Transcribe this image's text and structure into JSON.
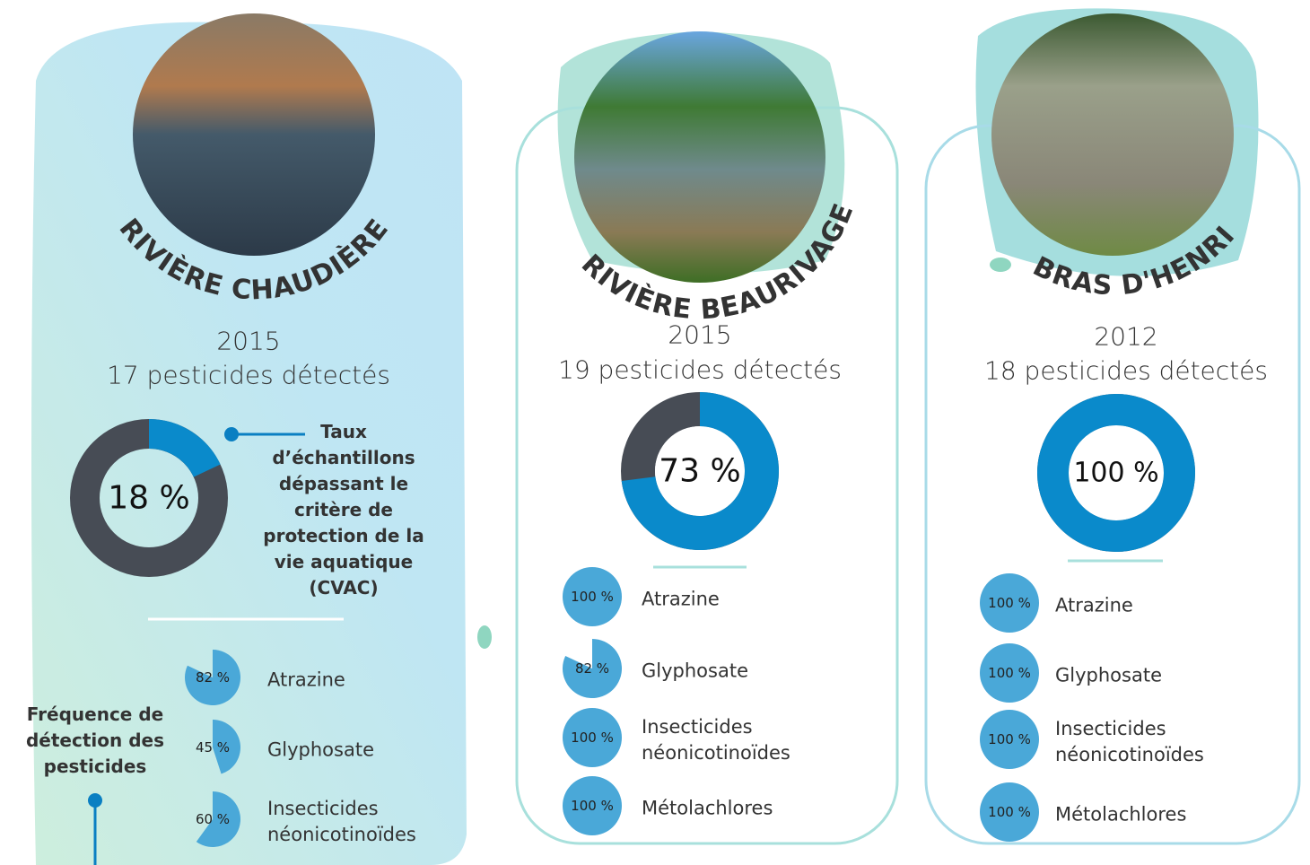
{
  "rivers": [
    {
      "name": "RIVIÈRE CHAUDIÈRE",
      "year": "2015",
      "detected": "17 pesticides détectés",
      "rate": {
        "value": 18,
        "label": "18 %"
      },
      "pesticides": [
        {
          "name": "Atrazine",
          "value": 82,
          "label": "82 %"
        },
        {
          "name": "Glyphosate",
          "value": 45,
          "label": "45 %"
        },
        {
          "name": "Insecticides néonicotinoïdes",
          "value": 60,
          "label": "60 %"
        }
      ]
    },
    {
      "name": "RIVIÈRE BEAURIVAGE",
      "year": "2015",
      "detected": "19 pesticides détectés",
      "rate": {
        "value": 73,
        "label": "73 %"
      },
      "pesticides": [
        {
          "name": "Atrazine",
          "value": 100,
          "label": "100 %"
        },
        {
          "name": "Glyphosate",
          "value": 82,
          "label": "82 %"
        },
        {
          "name": "Insecticides néonicotinoïdes",
          "value": 100,
          "label": "100 %"
        },
        {
          "name": "Métolachlores",
          "value": 100,
          "label": "100 %"
        }
      ]
    },
    {
      "name": "BRAS D'HENRI",
      "year": "2012",
      "detected": "18 pesticides détectés",
      "rate": {
        "value": 100,
        "label": "100 %"
      },
      "pesticides": [
        {
          "name": "Atrazine",
          "value": 100,
          "label": "100 %"
        },
        {
          "name": "Glyphosate",
          "value": 100,
          "label": "100 %"
        },
        {
          "name": "Insecticides néonicotinoïdes",
          "value": 100,
          "label": "100 %"
        },
        {
          "name": "Métolachlores",
          "value": 100,
          "label": "100 %"
        }
      ]
    }
  ],
  "legend": {
    "rate": "Taux d’échantillons dépassant le critère de protection de la vie aquatique (CVAC)",
    "frequency": "Fréquence de détection des pesticides"
  }
}
